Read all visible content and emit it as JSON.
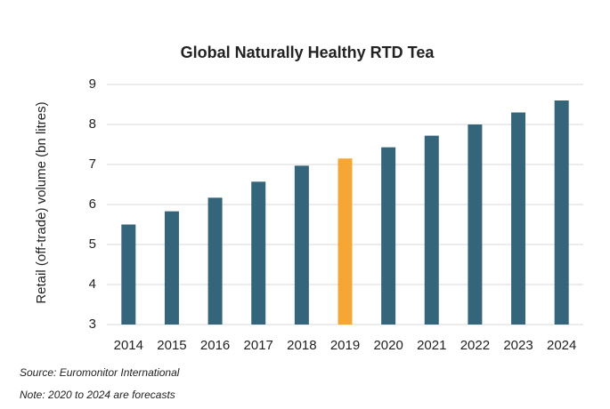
{
  "chart_data": {
    "type": "bar",
    "title": "Global Naturally Healthy RTD Tea",
    "y_label": "Retail (off-trade) volume (bn litres)",
    "categories": [
      "2014",
      "2015",
      "2016",
      "2017",
      "2018",
      "2019",
      "2020",
      "2021",
      "2022",
      "2023",
      "2024"
    ],
    "values": [
      5.5,
      5.83,
      6.17,
      6.57,
      6.97,
      7.15,
      7.43,
      7.72,
      8.0,
      8.3,
      8.6
    ],
    "colors": [
      "#35657a",
      "#35657a",
      "#35657a",
      "#35657a",
      "#35657a",
      "#f5a634",
      "#35657a",
      "#35657a",
      "#35657a",
      "#35657a",
      "#35657a"
    ],
    "ylim": [
      3,
      9
    ],
    "yticks": [
      3,
      4,
      5,
      6,
      7,
      8,
      9
    ],
    "grid": true,
    "source": "Source: Euromonitor International",
    "note": "Note: 2020 to 2024 are forecasts"
  }
}
